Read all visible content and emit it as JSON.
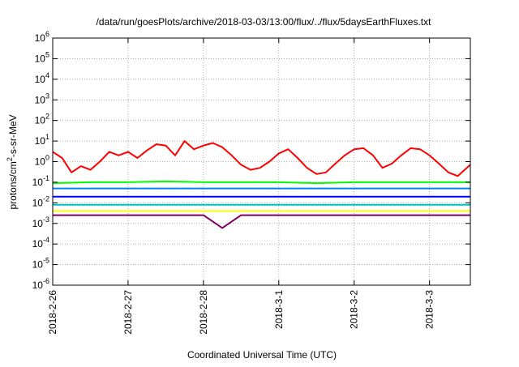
{
  "chart_data": {
    "type": "line",
    "title": "/data/run/goesPlots/archive/2018-03-03/13:00/flux/../flux/5daysEarthFluxes.txt",
    "xlabel": "Coordinated Universal Time (UTC)",
    "ylabel": "protons/cm²-s-sr-MeV",
    "xscale": "time",
    "xlim": [
      "2018-02-26 00:00",
      "2018-03-03 13:00"
    ],
    "xticks": [
      "2018-2-26",
      "2018-2-27",
      "2018-2-28",
      "2018-3-1",
      "2018-3-2",
      "2018-3-3"
    ],
    "yscale": "log",
    "ylim": [
      1e-06,
      1000000.0
    ],
    "yticks": [
      "10^-6",
      "10^-5",
      "10^-4",
      "10^-3",
      "10^-2",
      "10^-1",
      "10^0",
      "10^1",
      "10^2",
      "10^3",
      "10^4",
      "10^5",
      "10^6"
    ],
    "grid": true,
    "legend": "none",
    "series": [
      {
        "color": "#ff0000",
        "points": [
          [
            "2018-02-26 00:00",
            3.0
          ],
          [
            "2018-02-26 03:00",
            1.5
          ],
          [
            "2018-02-26 06:00",
            0.3
          ],
          [
            "2018-02-26 09:00",
            0.6
          ],
          [
            "2018-02-26 12:00",
            0.4
          ],
          [
            "2018-02-26 15:00",
            1.0
          ],
          [
            "2018-02-26 18:00",
            3.0
          ],
          [
            "2018-02-26 21:00",
            2.0
          ],
          [
            "2018-02-27 00:00",
            3.0
          ],
          [
            "2018-02-27 03:00",
            1.5
          ],
          [
            "2018-02-27 06:00",
            3.5
          ],
          [
            "2018-02-27 09:00",
            7.0
          ],
          [
            "2018-02-27 12:00",
            6.0
          ],
          [
            "2018-02-27 15:00",
            2.0
          ],
          [
            "2018-02-27 18:00",
            10.0
          ],
          [
            "2018-02-27 21:00",
            4.0
          ],
          [
            "2018-02-28 00:00",
            6.0
          ],
          [
            "2018-02-28 03:00",
            8.0
          ],
          [
            "2018-02-28 06:00",
            5.0
          ],
          [
            "2018-02-28 09:00",
            2.0
          ],
          [
            "2018-02-28 12:00",
            0.7
          ],
          [
            "2018-02-28 15:00",
            0.4
          ],
          [
            "2018-02-28 18:00",
            0.5
          ],
          [
            "2018-02-28 21:00",
            1.0
          ],
          [
            "2018-03-01 00:00",
            2.5
          ],
          [
            "2018-03-01 03:00",
            4.0
          ],
          [
            "2018-03-01 06:00",
            1.5
          ],
          [
            "2018-03-01 09:00",
            0.5
          ],
          [
            "2018-03-01 12:00",
            0.25
          ],
          [
            "2018-03-01 15:00",
            0.3
          ],
          [
            "2018-03-01 18:00",
            0.8
          ],
          [
            "2018-03-01 21:00",
            2.0
          ],
          [
            "2018-03-02 00:00",
            4.0
          ],
          [
            "2018-03-02 03:00",
            4.5
          ],
          [
            "2018-03-02 06:00",
            2.0
          ],
          [
            "2018-03-02 09:00",
            0.5
          ],
          [
            "2018-03-02 12:00",
            0.8
          ],
          [
            "2018-03-02 15:00",
            2.0
          ],
          [
            "2018-03-02 18:00",
            4.5
          ],
          [
            "2018-03-02 21:00",
            4.0
          ],
          [
            "2018-03-03 00:00",
            2.0
          ],
          [
            "2018-03-03 03:00",
            0.8
          ],
          [
            "2018-03-03 06:00",
            0.3
          ],
          [
            "2018-03-03 09:00",
            0.2
          ],
          [
            "2018-03-03 13:00",
            0.7
          ]
        ]
      },
      {
        "color": "#00ff00",
        "points": [
          [
            "2018-02-26 00:00",
            0.09
          ],
          [
            "2018-02-26 12:00",
            0.1
          ],
          [
            "2018-02-27 00:00",
            0.1
          ],
          [
            "2018-02-27 12:00",
            0.11
          ],
          [
            "2018-02-28 00:00",
            0.1
          ],
          [
            "2018-02-28 12:00",
            0.1
          ],
          [
            "2018-03-01 00:00",
            0.1
          ],
          [
            "2018-03-01 12:00",
            0.09
          ],
          [
            "2018-03-02 00:00",
            0.1
          ],
          [
            "2018-03-02 12:00",
            0.1
          ],
          [
            "2018-03-03 00:00",
            0.1
          ],
          [
            "2018-03-03 13:00",
            0.1
          ]
        ]
      },
      {
        "color": "#0080ff",
        "points": [
          [
            "2018-02-26 00:00",
            0.05
          ],
          [
            "2018-02-26 12:00",
            0.05
          ],
          [
            "2018-02-27 00:00",
            0.05
          ],
          [
            "2018-02-27 12:00",
            0.05
          ],
          [
            "2018-02-28 00:00",
            0.05
          ],
          [
            "2018-02-28 12:00",
            0.05
          ],
          [
            "2018-03-01 00:00",
            0.05
          ],
          [
            "2018-03-01 12:00",
            0.05
          ],
          [
            "2018-03-02 00:00",
            0.05
          ],
          [
            "2018-03-02 12:00",
            0.05
          ],
          [
            "2018-03-03 00:00",
            0.05
          ],
          [
            "2018-03-03 13:00",
            0.05
          ]
        ]
      },
      {
        "color": "#0000ff",
        "points": [
          [
            "2018-02-26 00:00",
            0.02
          ],
          [
            "2018-02-26 12:00",
            0.02
          ],
          [
            "2018-02-27 00:00",
            0.02
          ],
          [
            "2018-02-27 12:00",
            0.02
          ],
          [
            "2018-02-28 00:00",
            0.02
          ],
          [
            "2018-02-28 12:00",
            0.02
          ],
          [
            "2018-03-01 00:00",
            0.02
          ],
          [
            "2018-03-01 12:00",
            0.02
          ],
          [
            "2018-03-02 00:00",
            0.02
          ],
          [
            "2018-03-02 12:00",
            0.02
          ],
          [
            "2018-03-03 00:00",
            0.02
          ],
          [
            "2018-03-03 13:00",
            0.02
          ]
        ]
      },
      {
        "color": "#00c0c0",
        "points": [
          [
            "2018-02-26 00:00",
            0.008
          ],
          [
            "2018-02-26 12:00",
            0.008
          ],
          [
            "2018-02-27 00:00",
            0.008
          ],
          [
            "2018-02-27 12:00",
            0.008
          ],
          [
            "2018-02-28 00:00",
            0.008
          ],
          [
            "2018-02-28 12:00",
            0.008
          ],
          [
            "2018-03-01 00:00",
            0.008
          ],
          [
            "2018-03-01 12:00",
            0.008
          ],
          [
            "2018-03-02 00:00",
            0.008
          ],
          [
            "2018-03-02 12:00",
            0.008
          ],
          [
            "2018-03-03 00:00",
            0.008
          ],
          [
            "2018-03-03 13:00",
            0.008
          ]
        ]
      },
      {
        "color": "#ffff00",
        "points": [
          [
            "2018-02-26 00:00",
            0.004
          ],
          [
            "2018-02-27 00:00",
            0.004
          ],
          [
            "2018-02-28 00:00",
            0.004
          ],
          [
            "2018-03-01 00:00",
            0.004
          ],
          [
            "2018-03-02 00:00",
            0.004
          ],
          [
            "2018-03-03 00:00",
            0.004
          ],
          [
            "2018-03-03 13:00",
            0.004
          ]
        ]
      },
      {
        "color": "#800060",
        "points": [
          [
            "2018-02-26 00:00",
            0.0025
          ],
          [
            "2018-02-26 12:00",
            0.0025
          ],
          [
            "2018-02-27 00:00",
            0.0025
          ],
          [
            "2018-02-27 12:00",
            0.0025
          ],
          [
            "2018-02-28 00:00",
            0.0025
          ],
          [
            "2018-02-28 06:00",
            0.0006
          ],
          [
            "2018-02-28 12:00",
            0.0025
          ],
          [
            "2018-03-01 00:00",
            0.0025
          ],
          [
            "2018-03-01 12:00",
            0.0025
          ],
          [
            "2018-03-02 00:00",
            0.0025
          ],
          [
            "2018-03-02 12:00",
            0.0025
          ],
          [
            "2018-03-03 00:00",
            0.0025
          ],
          [
            "2018-03-03 13:00",
            0.0025
          ]
        ]
      }
    ]
  }
}
